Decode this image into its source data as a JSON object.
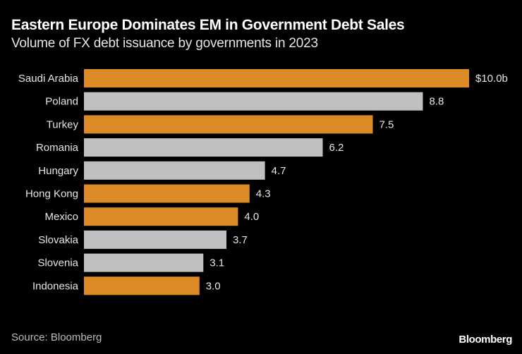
{
  "chart_data": {
    "type": "bar",
    "orientation": "horizontal",
    "title": "Eastern Europe Dominates EM in Government Debt Sales",
    "subtitle": "Volume of FX debt issuance by governments in 2023",
    "categories": [
      "Saudi Arabia",
      "Poland",
      "Turkey",
      "Romania",
      "Hungary",
      "Hong Kong",
      "Mexico",
      "Slovakia",
      "Slovenia",
      "Indonesia"
    ],
    "values": [
      10.0,
      8.8,
      7.5,
      6.2,
      4.7,
      4.3,
      4.0,
      3.7,
      3.1,
      3.0
    ],
    "data_labels": [
      "$10.0b",
      "8.8",
      "7.5",
      "6.2",
      "4.7",
      "4.3",
      "4.0",
      "3.7",
      "3.1",
      "3.0"
    ],
    "highlighted": [
      true,
      false,
      true,
      false,
      false,
      true,
      true,
      false,
      false,
      true
    ],
    "colors": {
      "highlight": "#DB8A26",
      "default": "#C0C0C0",
      "background": "#000000"
    },
    "xlim": [
      0,
      10
    ],
    "grid": false,
    "unit": "$ billions"
  },
  "footer": {
    "source": "Source: Bloomberg",
    "logo": "Bloomberg"
  }
}
